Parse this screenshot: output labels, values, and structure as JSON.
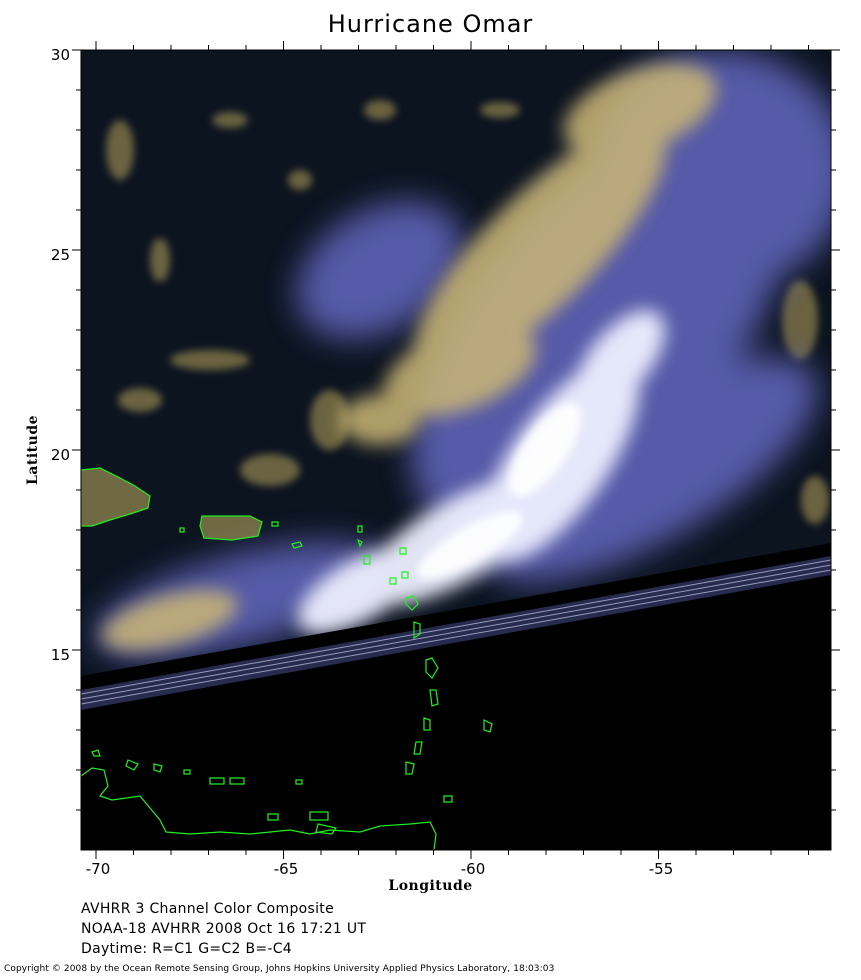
{
  "title": "Hurricane Omar",
  "x_axis": {
    "label": "Longitude",
    "ticks": [
      "-70",
      "-65",
      "-60",
      "-55"
    ]
  },
  "y_axis": {
    "label": "Latitude",
    "ticks": [
      "30",
      "25",
      "20",
      "15"
    ]
  },
  "info_lines": [
    "AVHRR 3 Channel Color Composite",
    "NOAA-18 AVHRR 2008 Oct 16 17:21 UT",
    "Daytime: R=C1 G=C2 B=-C4"
  ],
  "copyright": "Copyright © 2008 by the Ocean Remote Sensing Group, Johns Hopkins University Applied Physics Laboratory, 18:03:03",
  "colors": {
    "ocean": "#0c1420",
    "cloud_white": "#f4f4ff",
    "cloud_blue": "#6f74c8",
    "cloud_yellow": "#d9c27a",
    "coastline": "#22ee22",
    "no_data": "#000000"
  }
}
